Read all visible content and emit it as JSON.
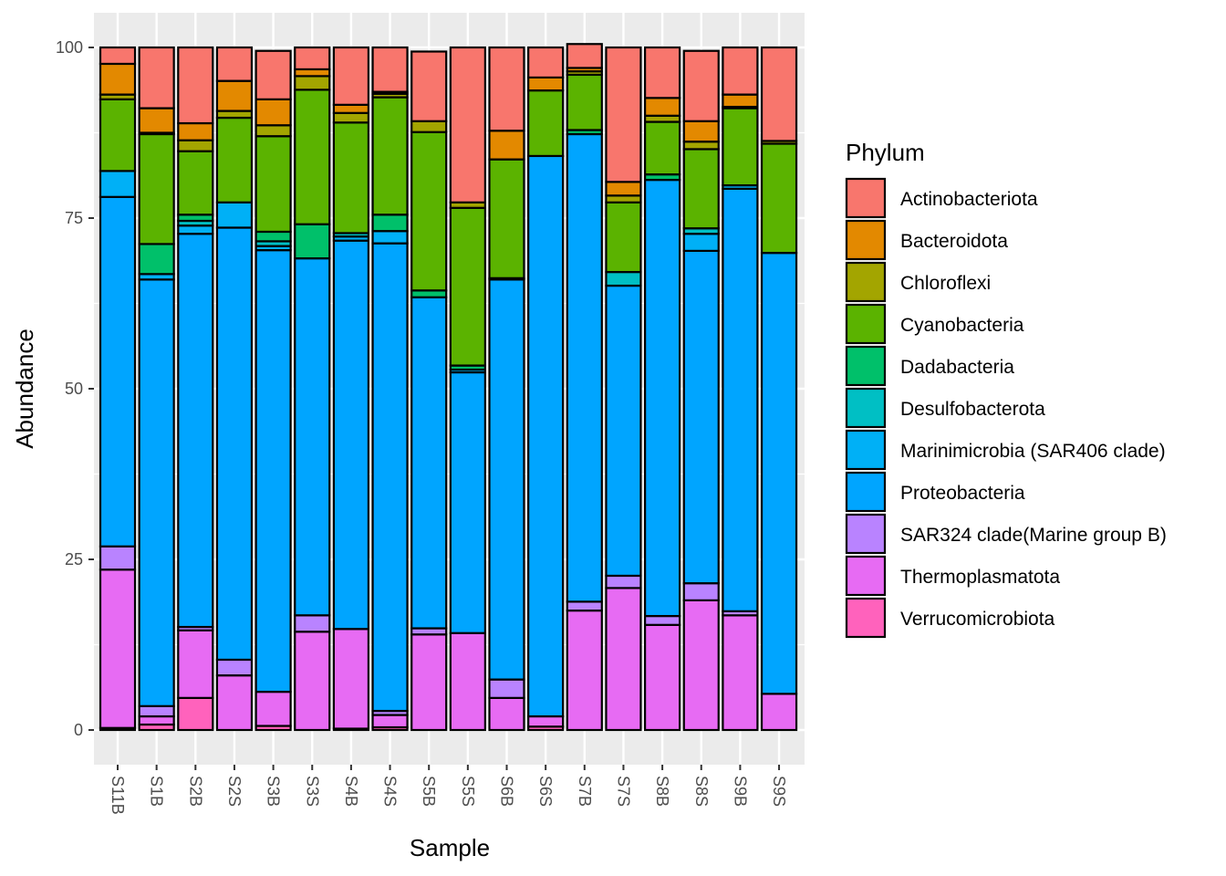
{
  "chart_data": {
    "type": "bar",
    "stacked": true,
    "xlabel": "Sample",
    "ylabel": "Abundance",
    "ylim": [
      0,
      100
    ],
    "yticks": [
      0,
      25,
      50,
      75,
      100
    ],
    "grid": true,
    "legend_title": "Phylum",
    "legend_position": "right",
    "categories": [
      "S11B",
      "S1B",
      "S2B",
      "S2S",
      "S3B",
      "S3S",
      "S4B",
      "S4S",
      "S5B",
      "S5S",
      "S6B",
      "S6S",
      "S7B",
      "S7S",
      "S8B",
      "S8S",
      "S9B",
      "S9S"
    ],
    "series": [
      {
        "name": "Verrucomicrobiota",
        "color": "#FF62BC",
        "values": [
          0.3,
          0.8,
          4.7,
          0,
          0.6,
          0,
          0.2,
          0.4,
          0,
          0,
          0,
          0.5,
          0,
          0,
          0,
          0,
          0,
          0
        ]
      },
      {
        "name": "Thermoplasmatota",
        "color": "#E76BF3",
        "values": [
          23.2,
          1.2,
          9.9,
          8.0,
          5.0,
          14.4,
          14.6,
          1.8,
          14.0,
          14.2,
          4.7,
          1.5,
          17.5,
          20.8,
          15.4,
          19.0,
          16.8,
          5.3
        ]
      },
      {
        "name": "SAR324 clade(Marine group B)",
        "color": "#B983FF",
        "values": [
          3.4,
          1.5,
          0.5,
          2.3,
          0,
          2.4,
          0,
          0.6,
          0.9,
          0,
          2.7,
          0,
          1.3,
          1.8,
          1.3,
          2.5,
          0.6,
          0
        ]
      },
      {
        "name": "Proteobacteria",
        "color": "#00A5FF",
        "values": [
          51.2,
          62.5,
          57.6,
          63.3,
          64.7,
          52.3,
          56.9,
          68.5,
          48.5,
          38.2,
          58.6,
          82.1,
          68.5,
          42.5,
          63.9,
          48.7,
          61.9,
          64.6
        ]
      },
      {
        "name": "Marinimicrobia (SAR406 clade)",
        "color": "#00B0F6",
        "values": [
          3.8,
          0.8,
          1.2,
          3.7,
          0.6,
          0,
          0.6,
          1.8,
          0,
          0.4,
          0,
          0,
          0,
          0,
          0,
          2.5,
          0.5,
          0
        ]
      },
      {
        "name": "Desulfobacterota",
        "color": "#00BFC4",
        "values": [
          0,
          0,
          0.7,
          0,
          0.7,
          0,
          0.5,
          0,
          0,
          0,
          0,
          0,
          0,
          2.0,
          0,
          0.8,
          0,
          0
        ]
      },
      {
        "name": "Dadabacteria",
        "color": "#00C06A",
        "values": [
          0,
          4.4,
          0.9,
          0,
          1.4,
          5.0,
          0,
          2.4,
          1.0,
          0.6,
          0.2,
          0,
          0.6,
          0,
          0.8,
          0,
          0,
          0
        ]
      },
      {
        "name": "Cyanobacteria",
        "color": "#5BB300",
        "values": [
          10.5,
          16.1,
          9.3,
          12.4,
          14.0,
          19.7,
          16.2,
          17.2,
          23.2,
          23.1,
          17.4,
          9.6,
          8.1,
          10.2,
          7.7,
          11.6,
          11.3,
          16.0
        ]
      },
      {
        "name": "Chloroflexi",
        "color": "#A3A500",
        "values": [
          0.7,
          0.2,
          1.6,
          1.0,
          1.6,
          2.0,
          1.4,
          0.5,
          1.6,
          0.8,
          0,
          0,
          0.5,
          1.0,
          0.9,
          1.1,
          0.2,
          0.4
        ]
      },
      {
        "name": "Bacteroidota",
        "color": "#E38900",
        "values": [
          4.5,
          3.6,
          2.5,
          4.4,
          3.8,
          1.0,
          1.2,
          0.3,
          0,
          0,
          4.2,
          1.9,
          0.5,
          2.0,
          2.6,
          3.0,
          1.8,
          0
        ]
      },
      {
        "name": "Actinobacteriota",
        "color": "#F8766D",
        "values": [
          2.4,
          8.9,
          11.1,
          4.9,
          7.1,
          3.2,
          8.4,
          6.5,
          10.2,
          22.7,
          12.2,
          4.4,
          3.5,
          19.7,
          7.4,
          10.3,
          6.9,
          13.7
        ]
      }
    ],
    "legend_order": [
      "Actinobacteriota",
      "Bacteroidota",
      "Chloroflexi",
      "Cyanobacteria",
      "Dadabacteria",
      "Desulfobacterota",
      "Marinimicrobia (SAR406 clade)",
      "Proteobacteria",
      "SAR324 clade(Marine group B)",
      "Thermoplasmatota",
      "Verrucomicrobiota"
    ]
  }
}
